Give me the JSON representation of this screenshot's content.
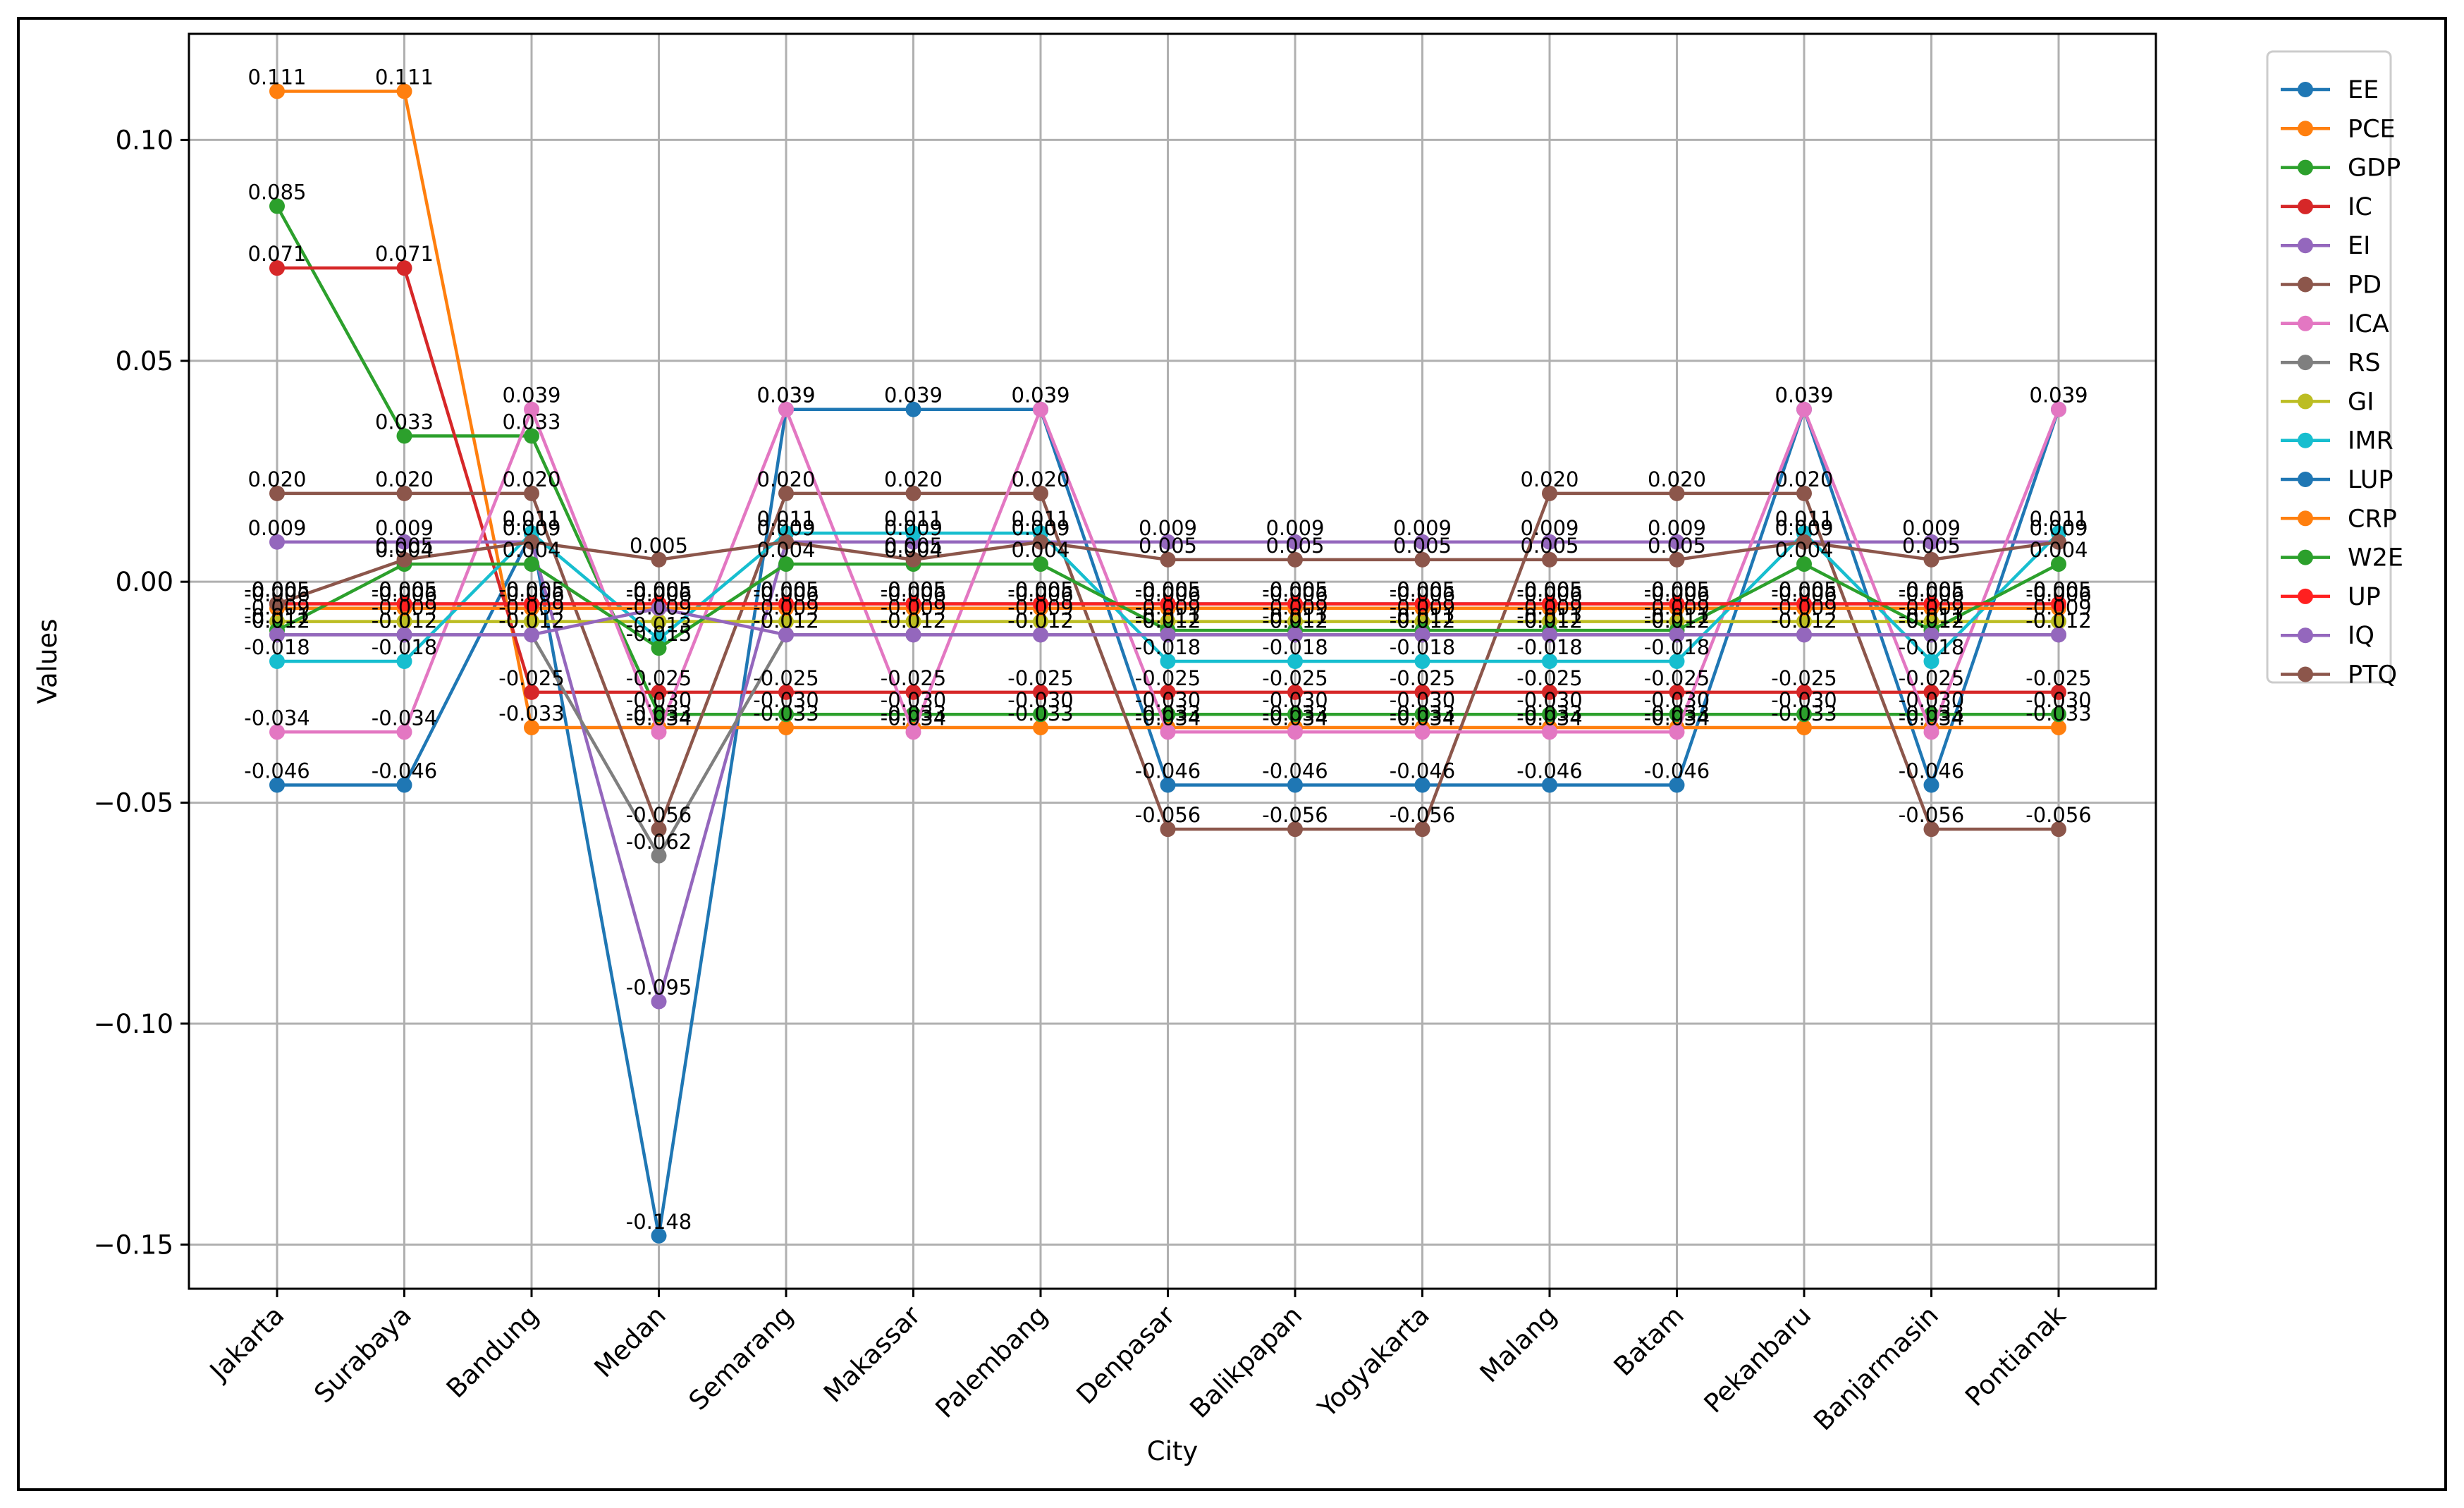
{
  "chart_data": {
    "type": "line",
    "title": "",
    "xlabel": "City",
    "ylabel": "Values",
    "ylim": [
      -0.16,
      0.124
    ],
    "yticks": [
      0.1,
      0.05,
      0.0,
      -0.05,
      -0.1,
      -0.15
    ],
    "ytick_labels": [
      "0.10",
      "0.05",
      "0.00",
      "−0.05",
      "−0.10",
      "−0.15"
    ],
    "grid": true,
    "legend_position": "outside-top-right",
    "categories": [
      "Jakarta",
      "Surabaya",
      "Bandung",
      "Medan",
      "Semarang",
      "Makassar",
      "Palembang",
      "Denpasar",
      "Balikpapan",
      "Yogyakarta",
      "Malang",
      "Batam",
      "Pekanbaru",
      "Banjarmasin",
      "Pontianak"
    ],
    "series": [
      {
        "name": "EE",
        "color": "#1f77b4",
        "values": [
          -0.046,
          -0.046,
          0.011,
          -0.148,
          0.039,
          0.039,
          0.039,
          -0.046,
          -0.046,
          -0.046,
          -0.046,
          -0.046,
          0.039,
          -0.046,
          0.039
        ]
      },
      {
        "name": "PCE",
        "color": "#ff7f0e",
        "values": [
          0.111,
          0.111,
          -0.033,
          -0.033,
          -0.033,
          -0.033,
          -0.033,
          -0.033,
          -0.033,
          -0.033,
          -0.033,
          -0.033,
          -0.033,
          -0.033,
          -0.033
        ]
      },
      {
        "name": "GDP",
        "color": "#2ca02c",
        "values": [
          0.085,
          0.033,
          0.033,
          -0.03,
          -0.03,
          -0.03,
          -0.03,
          -0.03,
          -0.03,
          -0.03,
          -0.03,
          -0.03,
          -0.03,
          -0.03,
          -0.03
        ]
      },
      {
        "name": "IC",
        "color": "#d62728",
        "values": [
          0.071,
          0.071,
          -0.025,
          -0.025,
          -0.025,
          -0.025,
          -0.025,
          -0.025,
          -0.025,
          -0.025,
          -0.025,
          -0.025,
          -0.025,
          -0.025,
          -0.025
        ]
      },
      {
        "name": "EI",
        "color": "#9467bd",
        "values": [
          0.009,
          0.009,
          0.009,
          -0.095,
          0.009,
          0.009,
          0.009,
          0.009,
          0.009,
          0.009,
          0.009,
          0.009,
          0.009,
          0.009,
          0.009
        ]
      },
      {
        "name": "PD",
        "color": "#8c564b",
        "values": [
          0.02,
          0.02,
          0.02,
          -0.056,
          0.02,
          0.02,
          0.02,
          -0.056,
          -0.056,
          -0.056,
          0.02,
          0.02,
          0.02,
          -0.056,
          -0.056
        ]
      },
      {
        "name": "ICA",
        "color": "#e377c2",
        "values": [
          -0.034,
          -0.034,
          0.039,
          -0.034,
          0.039,
          -0.034,
          0.039,
          -0.034,
          -0.034,
          -0.034,
          -0.034,
          -0.034,
          0.039,
          -0.034,
          0.039
        ]
      },
      {
        "name": "RS",
        "color": "#7f7f7f",
        "values": [
          -0.012,
          -0.012,
          -0.012,
          -0.062,
          -0.012,
          -0.012,
          -0.012,
          -0.012,
          -0.012,
          -0.012,
          -0.012,
          -0.012,
          -0.012,
          -0.012,
          -0.012
        ]
      },
      {
        "name": "GI",
        "color": "#bcbd22",
        "values": [
          -0.009,
          -0.009,
          -0.009,
          -0.009,
          -0.009,
          -0.009,
          -0.009,
          -0.009,
          -0.009,
          -0.009,
          -0.009,
          -0.009,
          -0.009,
          -0.009,
          -0.009
        ]
      },
      {
        "name": "IMR",
        "color": "#17becf",
        "values": [
          -0.018,
          -0.018,
          0.011,
          -0.013,
          0.011,
          0.011,
          0.011,
          -0.018,
          -0.018,
          -0.018,
          -0.018,
          -0.018,
          0.011,
          -0.018,
          0.011
        ]
      },
      {
        "name": "LUP",
        "color": "#1f77b4",
        "values": [
          -0.005,
          -0.005,
          -0.005,
          -0.005,
          -0.005,
          -0.005,
          -0.005,
          -0.005,
          -0.005,
          -0.005,
          -0.005,
          -0.005,
          -0.005,
          -0.005,
          -0.005
        ]
      },
      {
        "name": "CRP",
        "color": "#ff7f0e",
        "values": [
          -0.006,
          -0.006,
          -0.006,
          -0.006,
          -0.006,
          -0.006,
          -0.006,
          -0.006,
          -0.006,
          -0.006,
          -0.006,
          -0.006,
          -0.006,
          -0.006,
          -0.006
        ]
      },
      {
        "name": "W2E",
        "color": "#2ca02c",
        "values": [
          -0.011,
          0.004,
          0.004,
          -0.015,
          0.004,
          0.004,
          0.004,
          -0.011,
          -0.011,
          -0.011,
          -0.011,
          -0.011,
          0.004,
          -0.011,
          0.004
        ]
      },
      {
        "name": "UP",
        "color": "#ff2020",
        "values": [
          -0.005,
          -0.005,
          -0.005,
          -0.005,
          -0.005,
          -0.005,
          -0.005,
          -0.005,
          -0.005,
          -0.005,
          -0.005,
          -0.005,
          -0.005,
          -0.005,
          -0.005
        ]
      },
      {
        "name": "IQ",
        "color": "#9467bd",
        "values": [
          -0.012,
          -0.012,
          -0.012,
          -0.006,
          -0.012,
          -0.012,
          -0.012,
          -0.012,
          -0.012,
          -0.012,
          -0.012,
          -0.012,
          -0.012,
          -0.012,
          -0.012
        ]
      },
      {
        "name": "PTQ",
        "color": "#8c564b",
        "values": [
          -0.005,
          0.005,
          0.009,
          0.005,
          0.009,
          0.005,
          0.009,
          0.005,
          0.005,
          0.005,
          0.005,
          0.005,
          0.009,
          0.005,
          0.009
        ]
      }
    ]
  }
}
